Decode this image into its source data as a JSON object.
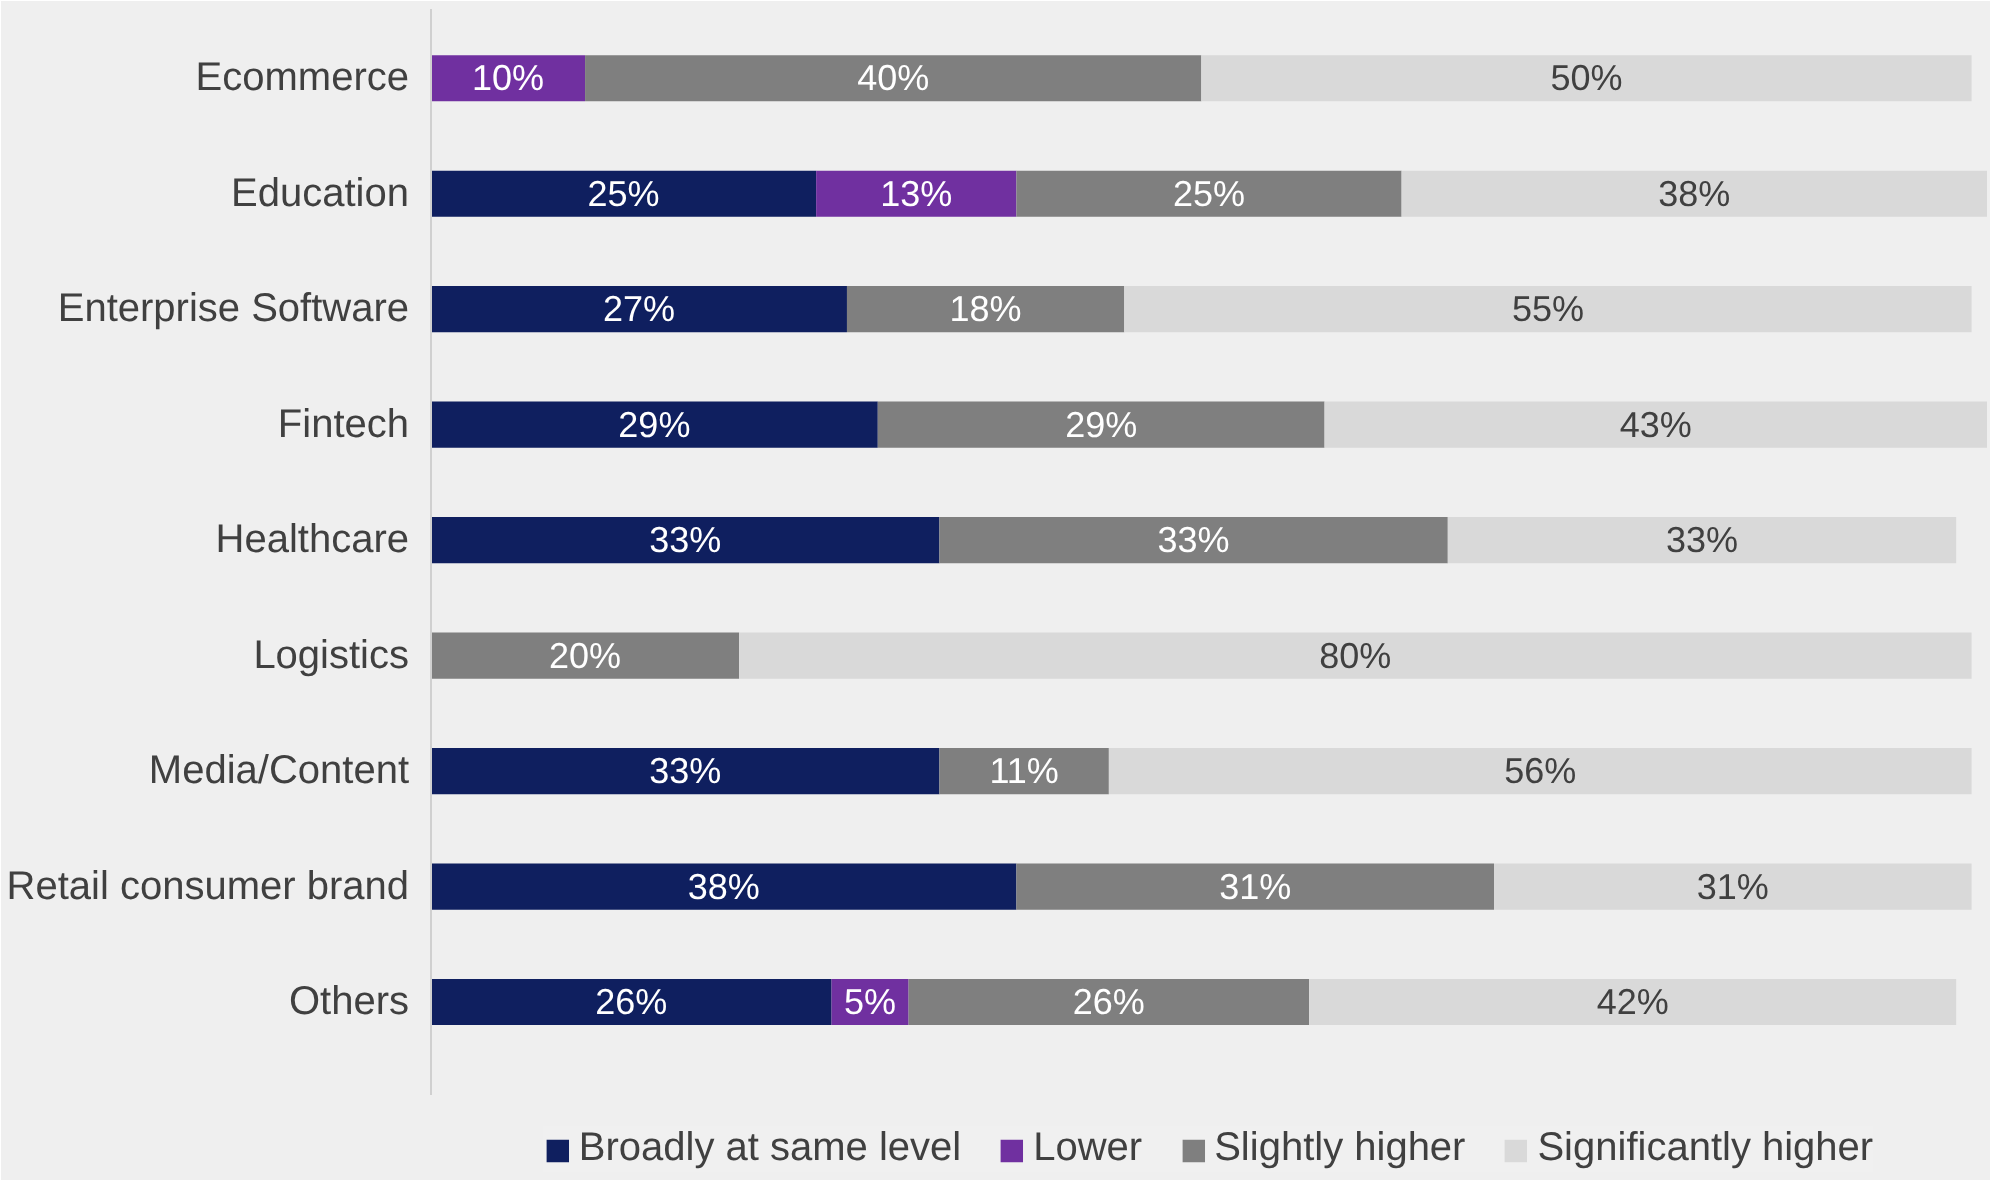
{
  "chart_data": {
    "type": "bar",
    "orientation": "horizontal",
    "stacked": true,
    "grid": false,
    "legend": "bottom",
    "tick_labels": "y",
    "categories": [
      "Ecommerce",
      "Education",
      "Enterprise Software",
      "Fintech",
      "Healthcare",
      "Logistics",
      "Media/Content",
      "Retail consumer brand",
      "Others"
    ],
    "series": [
      {
        "name": "Broadly at same level",
        "color": "#0f1f5f",
        "values": [
          null,
          25,
          27,
          29,
          33,
          null,
          33,
          38,
          26
        ],
        "value_labels": [
          null,
          "25%",
          "27%",
          "29%",
          "33%",
          null,
          "33%",
          "38%",
          "26%"
        ]
      },
      {
        "name": "Lower",
        "color": "#7030a0",
        "values": [
          10,
          13,
          null,
          null,
          null,
          null,
          null,
          null,
          5
        ],
        "value_labels": [
          "10%",
          "13%",
          null,
          null,
          null,
          null,
          null,
          null,
          "5%"
        ]
      },
      {
        "name": "Slightly higher",
        "color": "#7f7f7f",
        "values": [
          40,
          25,
          18,
          29,
          33,
          20,
          11,
          31,
          26
        ],
        "value_labels": [
          "40%",
          "25%",
          "18%",
          "29%",
          "33%",
          "20%",
          "11%",
          "31%",
          "26%"
        ]
      },
      {
        "name": "Significantly higher",
        "color": "#d9d9d9",
        "values": [
          50,
          38,
          55,
          43,
          33,
          80,
          56,
          31,
          42
        ],
        "value_labels": [
          "50%",
          "38%",
          "55%",
          "43%",
          "33%",
          "80%",
          "56%",
          "31%",
          "42%"
        ]
      }
    ]
  }
}
